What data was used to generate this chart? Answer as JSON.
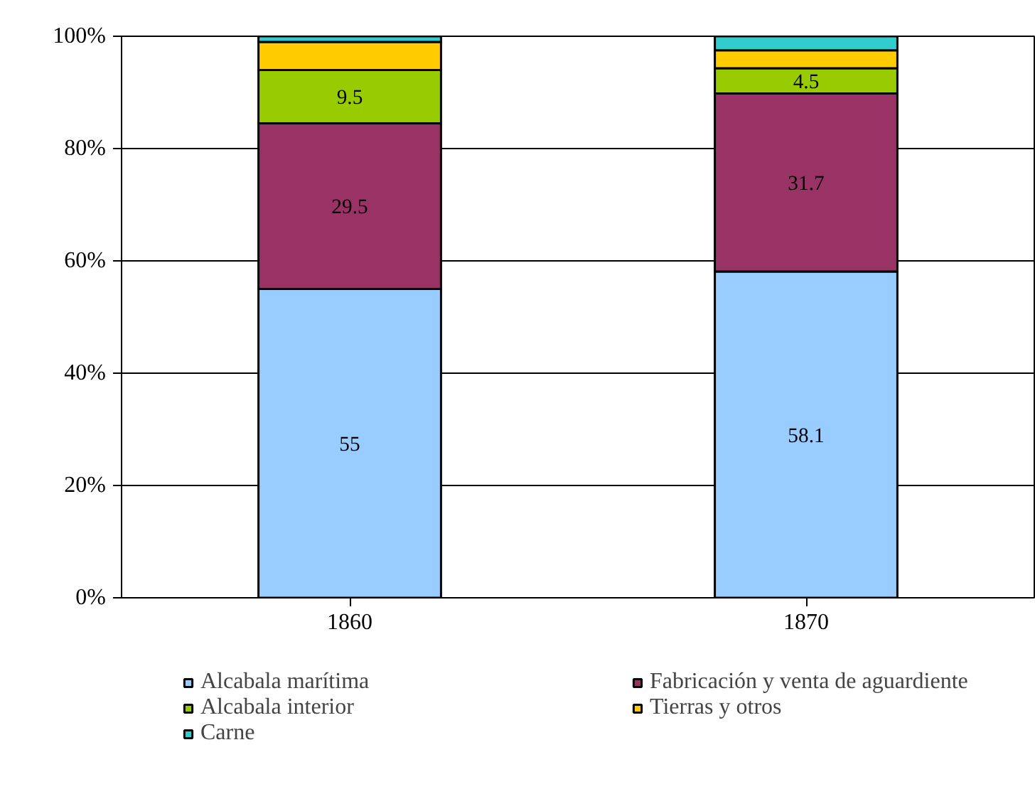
{
  "chart_data": {
    "type": "bar",
    "stacked": true,
    "categories": [
      "1860",
      "1870"
    ],
    "series": [
      {
        "name": "Alcabala marítima",
        "color": "#99ccff",
        "values": [
          55,
          58.1
        ],
        "value_labels": [
          "55",
          "58.1"
        ]
      },
      {
        "name": "Fabricación y venta de aguardiente",
        "color": "#993366",
        "values": [
          29.5,
          31.7
        ],
        "value_labels": [
          "29.5",
          "31.7"
        ]
      },
      {
        "name": "Alcabala interior",
        "color": "#99cc00",
        "values": [
          9.5,
          4.5
        ],
        "value_labels": [
          "9.5",
          "4.5"
        ]
      },
      {
        "name": "Tierras y otros",
        "color": "#ffcc00",
        "values": [
          5,
          3.2
        ]
      },
      {
        "name": "Carne",
        "color": "#33cccc",
        "values": [
          1,
          2.5
        ]
      }
    ],
    "ylim": [
      0,
      100
    ],
    "yticks": [
      {
        "value": 0,
        "label": "0%"
      },
      {
        "value": 20,
        "label": "20%"
      },
      {
        "value": 40,
        "label": "40%"
      },
      {
        "value": 60,
        "label": "60%"
      },
      {
        "value": 80,
        "label": "80%"
      },
      {
        "value": 100,
        "label": "100%"
      }
    ],
    "grid": "y",
    "legend": "bottom"
  }
}
